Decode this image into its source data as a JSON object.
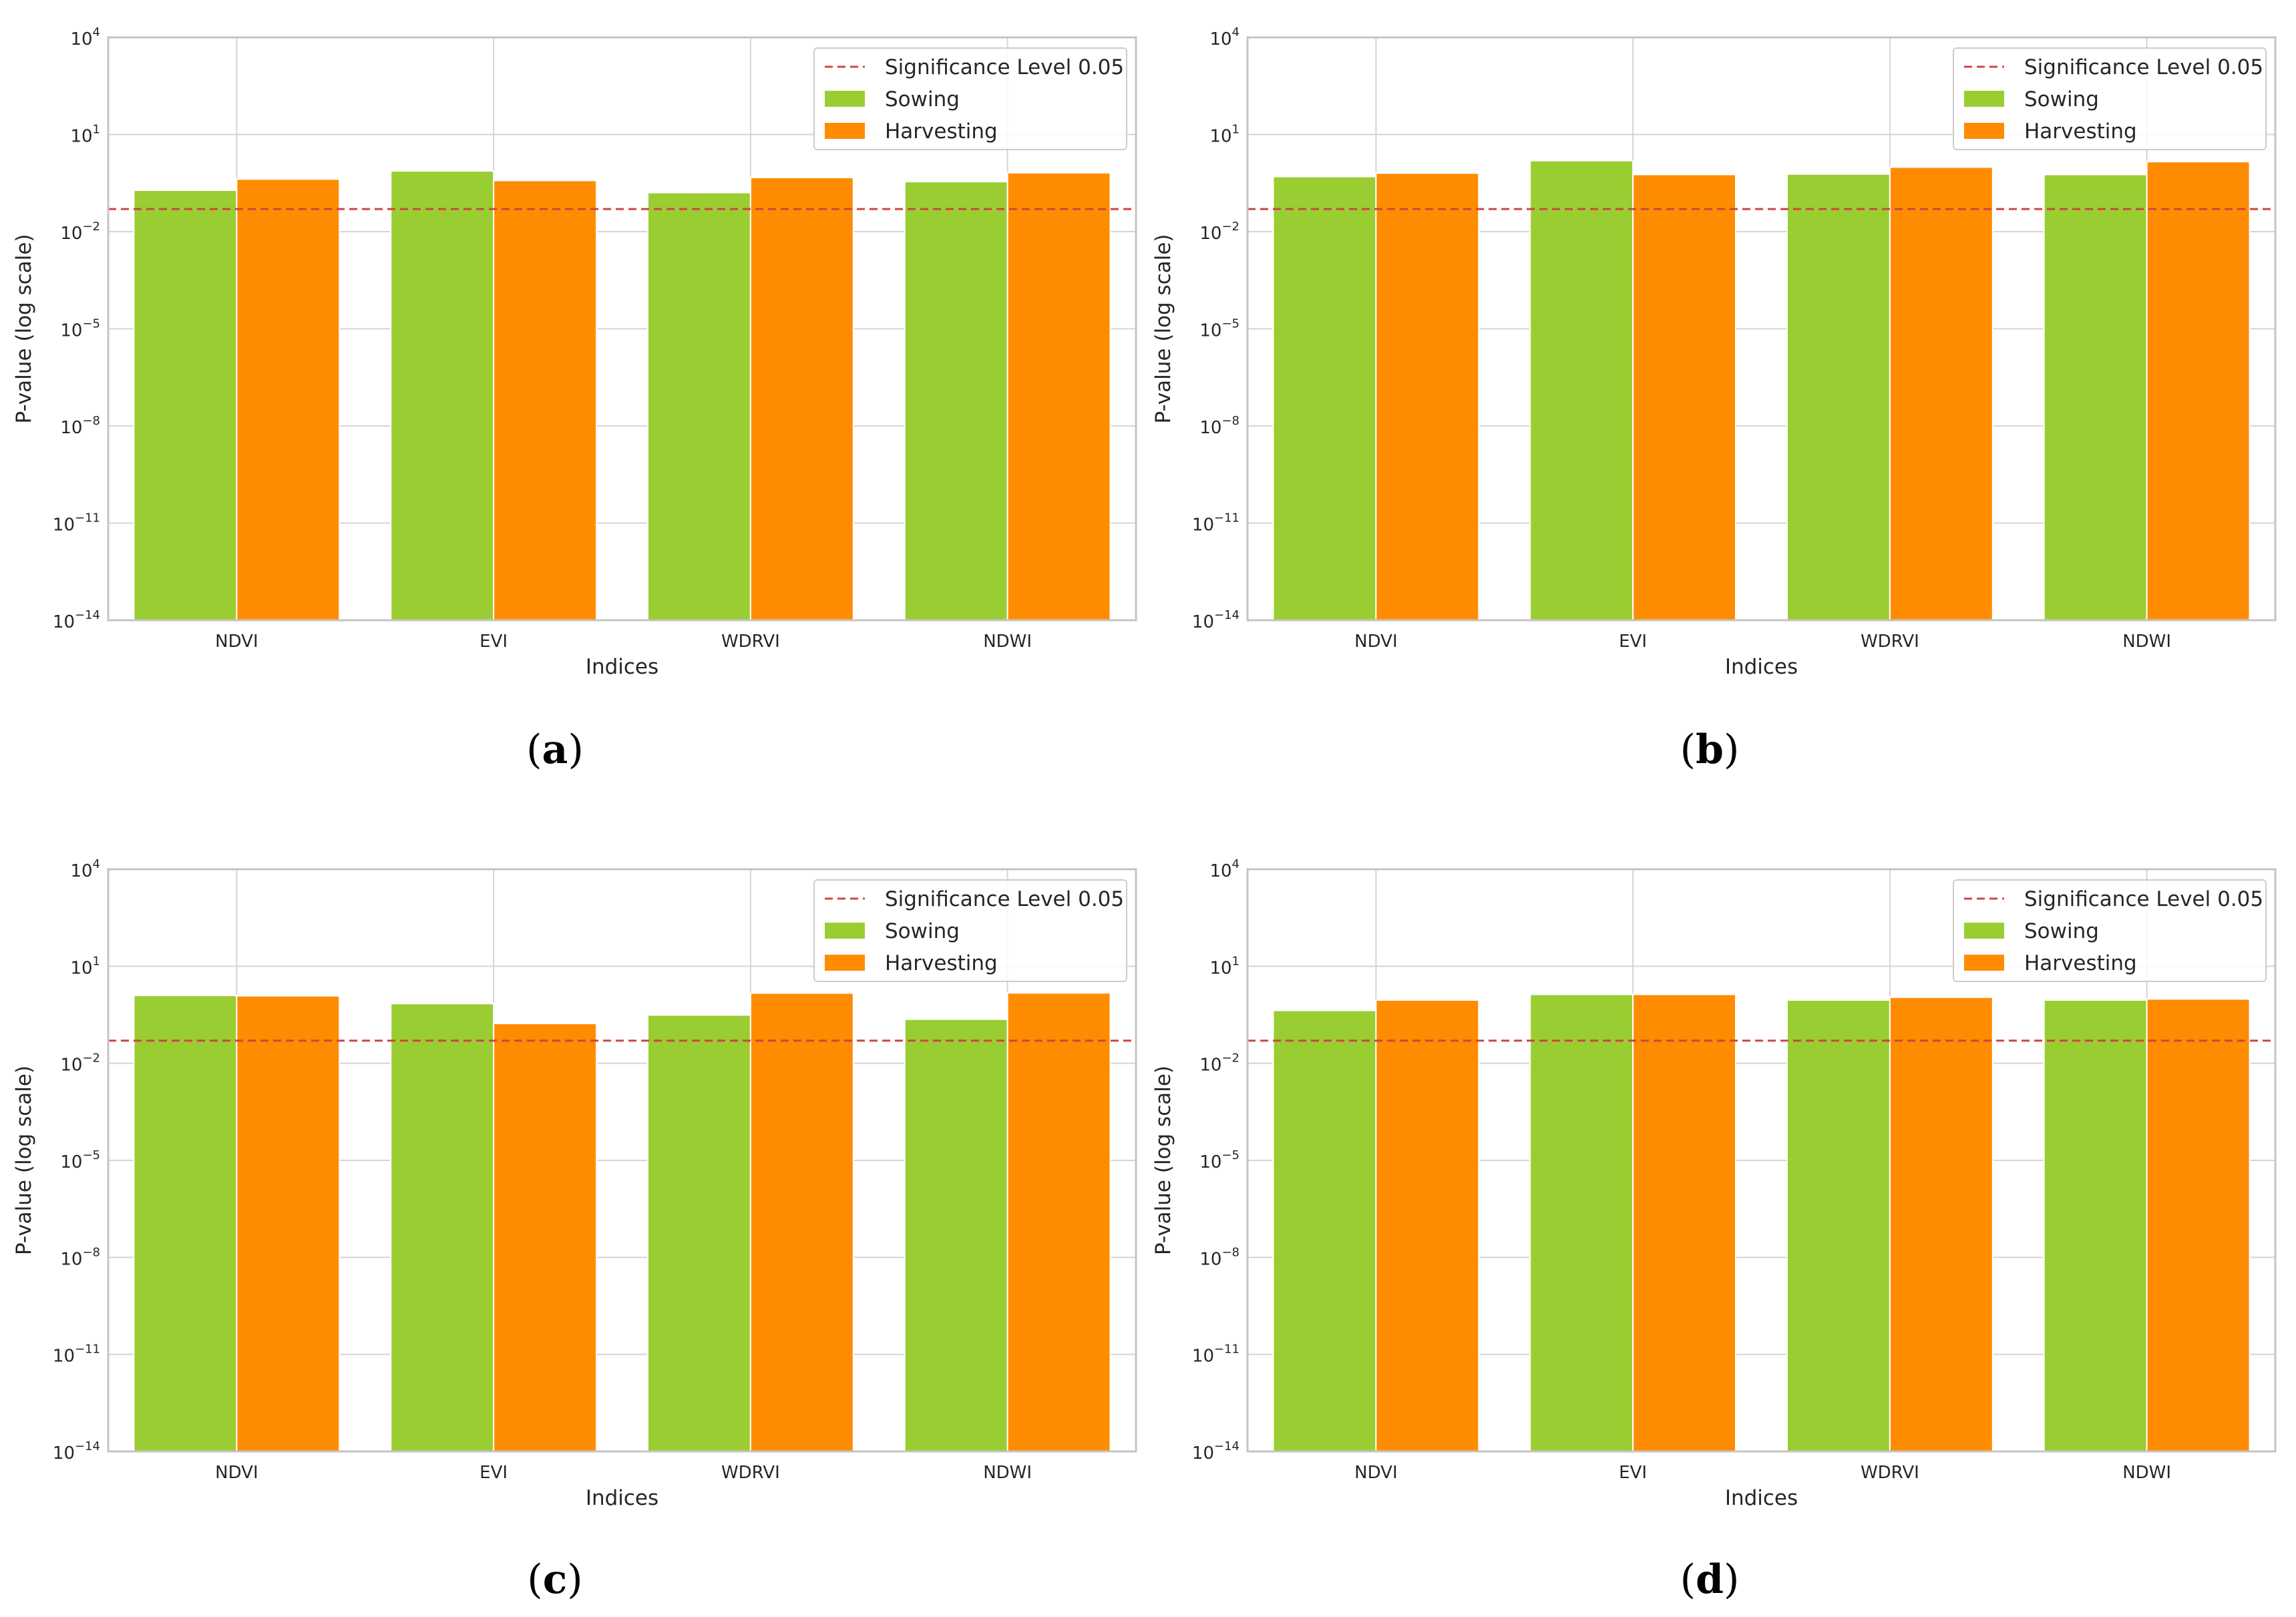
{
  "colors": {
    "sowing": "#9acd32",
    "harvesting": "#ff8c00",
    "significance_line": "#cd4545",
    "grid": "#d4d4d4",
    "frame": "#c4c4c4"
  },
  "chart_data": [
    {
      "id": "a",
      "type": "bar",
      "caption": {
        "open": "(",
        "letter": "a",
        "close": ")"
      },
      "categories": [
        "NDVI",
        "EVI",
        "WDRVI",
        "NDWI"
      ],
      "series": [
        {
          "name": "Sowing",
          "values": [
            0.19,
            0.75,
            0.16,
            0.35
          ]
        },
        {
          "name": "Harvesting",
          "values": [
            0.42,
            0.38,
            0.47,
            0.66
          ]
        }
      ],
      "reference_line": {
        "label": "Significance Level 0.05",
        "value": 0.05
      },
      "xlabel": "Indices",
      "ylabel": "P-value (log scale)",
      "yscale": "log",
      "ylim": [
        1e-14,
        10000
      ],
      "yticks": [
        {
          "value": 1e-14,
          "base": "10",
          "exp": "−14"
        },
        {
          "value": 1e-11,
          "base": "10",
          "exp": "−11"
        },
        {
          "value": 1e-08,
          "base": "10",
          "exp": "−8"
        },
        {
          "value": 1e-05,
          "base": "10",
          "exp": "−5"
        },
        {
          "value": 0.01,
          "base": "10",
          "exp": "−2"
        },
        {
          "value": 10,
          "base": "10",
          "exp": "1"
        },
        {
          "value": 10000,
          "base": "10",
          "exp": "4"
        }
      ],
      "grid": true,
      "legend": "top-right"
    },
    {
      "id": "b",
      "type": "bar",
      "caption": {
        "open": "(",
        "letter": "b",
        "close": ")"
      },
      "categories": [
        "NDVI",
        "EVI",
        "WDRVI",
        "NDWI"
      ],
      "series": [
        {
          "name": "Sowing",
          "values": [
            0.5,
            1.55,
            0.6,
            0.58
          ]
        },
        {
          "name": "Harvesting",
          "values": [
            0.64,
            0.58,
            0.98,
            1.45
          ]
        }
      ],
      "reference_line": {
        "label": "Significance Level 0.05",
        "value": 0.05
      },
      "xlabel": "Indices",
      "ylabel": "P-value (log scale)",
      "yscale": "log",
      "ylim": [
        1e-14,
        10000
      ],
      "yticks": [
        {
          "value": 1e-14,
          "base": "10",
          "exp": "−14"
        },
        {
          "value": 1e-11,
          "base": "10",
          "exp": "−11"
        },
        {
          "value": 1e-08,
          "base": "10",
          "exp": "−8"
        },
        {
          "value": 1e-05,
          "base": "10",
          "exp": "−5"
        },
        {
          "value": 0.01,
          "base": "10",
          "exp": "−2"
        },
        {
          "value": 10,
          "base": "10",
          "exp": "1"
        },
        {
          "value": 10000,
          "base": "10",
          "exp": "4"
        }
      ],
      "grid": true,
      "legend": "top-right"
    },
    {
      "id": "c",
      "type": "bar",
      "caption": {
        "open": "(",
        "letter": "c",
        "close": ")"
      },
      "categories": [
        "NDVI",
        "EVI",
        "WDRVI",
        "NDWI"
      ],
      "series": [
        {
          "name": "Sowing",
          "values": [
            1.25,
            0.7,
            0.31,
            0.23
          ]
        },
        {
          "name": "Harvesting",
          "values": [
            1.22,
            0.17,
            1.48,
            1.5
          ]
        }
      ],
      "reference_line": {
        "label": "Significance Level 0.05",
        "value": 0.05
      },
      "xlabel": "Indices",
      "ylabel": "P-value (log scale)",
      "yscale": "log",
      "ylim": [
        1e-14,
        10000
      ],
      "yticks": [
        {
          "value": 1e-14,
          "base": "10",
          "exp": "−14"
        },
        {
          "value": 1e-11,
          "base": "10",
          "exp": "−11"
        },
        {
          "value": 1e-08,
          "base": "10",
          "exp": "−8"
        },
        {
          "value": 1e-05,
          "base": "10",
          "exp": "−5"
        },
        {
          "value": 0.01,
          "base": "10",
          "exp": "−2"
        },
        {
          "value": 10,
          "base": "10",
          "exp": "1"
        },
        {
          "value": 10000,
          "base": "10",
          "exp": "4"
        }
      ],
      "grid": true,
      "legend": "top-right"
    },
    {
      "id": "d",
      "type": "bar",
      "caption": {
        "open": "(",
        "letter": "d",
        "close": ")"
      },
      "categories": [
        "NDVI",
        "EVI",
        "WDRVI",
        "NDWI"
      ],
      "series": [
        {
          "name": "Sowing",
          "values": [
            0.43,
            1.35,
            0.9,
            0.9
          ]
        },
        {
          "name": "Harvesting",
          "values": [
            0.9,
            1.35,
            1.1,
            0.97
          ]
        }
      ],
      "reference_line": {
        "label": "Significance Level 0.05",
        "value": 0.05
      },
      "xlabel": "Indices",
      "ylabel": "P-value (log scale)",
      "yscale": "log",
      "ylim": [
        1e-14,
        10000
      ],
      "yticks": [
        {
          "value": 1e-14,
          "base": "10",
          "exp": "−14"
        },
        {
          "value": 1e-11,
          "base": "10",
          "exp": "−11"
        },
        {
          "value": 1e-08,
          "base": "10",
          "exp": "−8"
        },
        {
          "value": 1e-05,
          "base": "10",
          "exp": "−5"
        },
        {
          "value": 0.01,
          "base": "10",
          "exp": "−2"
        },
        {
          "value": 10,
          "base": "10",
          "exp": "1"
        },
        {
          "value": 10000,
          "base": "10",
          "exp": "4"
        }
      ],
      "grid": true,
      "legend": "top-right"
    }
  ]
}
